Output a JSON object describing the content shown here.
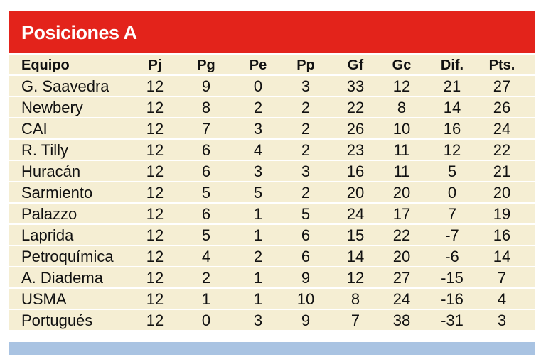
{
  "title": "Posiciones A",
  "table": {
    "header": [
      "Equipo",
      "Pj",
      "Pg",
      "Pe",
      "Pp",
      "Gf",
      "Gc",
      "Dif.",
      "Pts."
    ],
    "rows": [
      [
        "G. Saavedra",
        12,
        9,
        0,
        3,
        33,
        12,
        21,
        27
      ],
      [
        "Newbery",
        12,
        8,
        2,
        2,
        22,
        8,
        14,
        26
      ],
      [
        "CAI",
        12,
        7,
        3,
        2,
        26,
        10,
        16,
        24
      ],
      [
        "R. Tilly",
        12,
        6,
        4,
        2,
        23,
        11,
        12,
        22
      ],
      [
        "Huracán",
        12,
        6,
        3,
        3,
        16,
        11,
        5,
        21
      ],
      [
        "Sarmiento",
        12,
        5,
        5,
        2,
        20,
        20,
        0,
        20
      ],
      [
        "Palazzo",
        12,
        6,
        1,
        5,
        24,
        17,
        7,
        19
      ],
      [
        "Laprida",
        12,
        5,
        1,
        6,
        15,
        22,
        -7,
        16
      ],
      [
        "Petroquímica",
        12,
        4,
        2,
        6,
        14,
        20,
        -6,
        14
      ],
      [
        "A. Diadema",
        12,
        2,
        1,
        9,
        12,
        27,
        -15,
        7
      ],
      [
        "USMA",
        12,
        1,
        1,
        10,
        8,
        24,
        -16,
        4
      ],
      [
        "Portugués",
        12,
        0,
        3,
        9,
        7,
        38,
        -31,
        3
      ]
    ]
  }
}
